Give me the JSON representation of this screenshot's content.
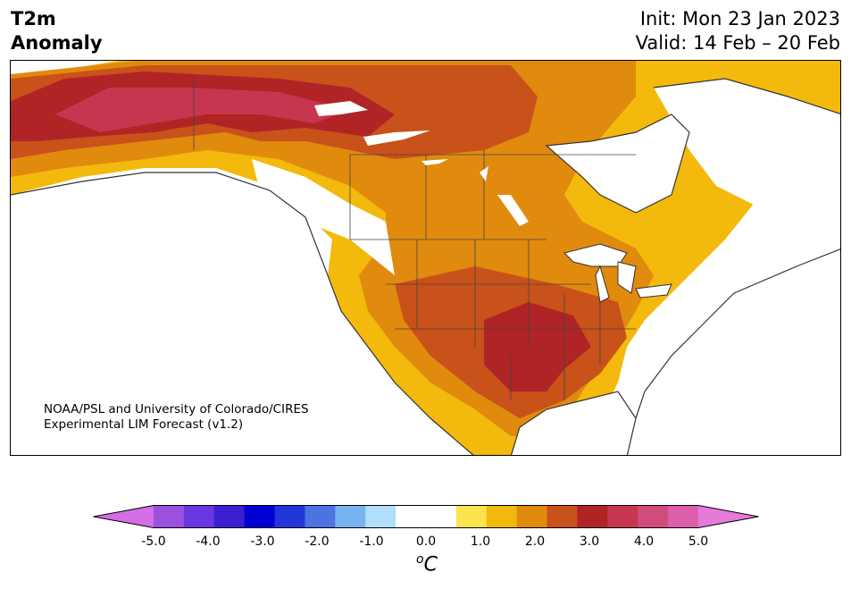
{
  "header": {
    "title_line1": "T2m",
    "title_line2": "Anomaly",
    "init": "Init: Mon 23 Jan 2023",
    "valid": "Valid: 14 Feb – 20 Feb"
  },
  "credit": {
    "line1": "NOAA/PSL and University of Colorado/CIRES",
    "line2": "Experimental LIM Forecast (v1.2)"
  },
  "colorbar": {
    "unit_base": "C",
    "unit_sup": "o",
    "min": -5.0,
    "max": 5.0,
    "step": 0.5,
    "ticks": [
      "-5.0",
      "-4.0",
      "-3.0",
      "-2.0",
      "-1.0",
      "0.0",
      "1.0",
      "2.0",
      "3.0",
      "4.0",
      "5.0"
    ],
    "colors": [
      "#d36ee6",
      "#9b51de",
      "#6a36e0",
      "#3b1fd1",
      "#0000d3",
      "#2235d9",
      "#4c72e3",
      "#78b3f0",
      "#b0defb",
      "#ffffff",
      "#ffffff",
      "#fde34e",
      "#f3b90c",
      "#e08a0e",
      "#c9511a",
      "#b02425",
      "#c7364f",
      "#d04c7c",
      "#dd5fac",
      "#e67ad9"
    ]
  },
  "map": {
    "region": "North America",
    "field": "2m temperature anomaly",
    "palette": {
      "none": "#ffffff",
      "a05": "#fde34e",
      "a10": "#f3b90c",
      "a15": "#e08a0e",
      "a20": "#c9511a",
      "a25": "#b02425",
      "a30": "#c7364f"
    }
  }
}
